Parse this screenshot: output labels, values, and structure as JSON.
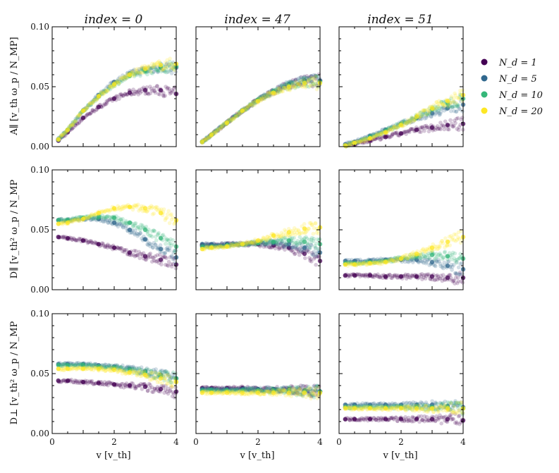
{
  "chart_data": {
    "type": "scatter",
    "column_titles": [
      "index = 0",
      "index = 47",
      "index = 51"
    ],
    "row_ylabels": [
      "A∥ [v_th ω_p / N_MP]",
      "D∥ [v_th² ω_p / N_MP",
      "D⊥ [v_th² ω_p / N_MP"
    ],
    "xlabel": "v [v_th]",
    "xlim": [
      0,
      4
    ],
    "ylim": [
      0,
      0.1
    ],
    "x_ticks": [
      "0",
      "2",
      "4"
    ],
    "y_ticks": [
      "0.00",
      "0.05",
      "0.10"
    ],
    "legend": {
      "placement": "right",
      "entries": [
        {
          "label": "N_d = 1",
          "color": "#440154"
        },
        {
          "label": "N_d = 5",
          "color": "#31688e"
        },
        {
          "label": "N_d = 10",
          "color": "#35b779"
        },
        {
          "label": "N_d = 20",
          "color": "#fde725"
        }
      ]
    },
    "x": [
      0.2,
      0.5,
      1.0,
      1.5,
      2.0,
      2.5,
      3.0,
      3.5,
      4.0
    ],
    "panels": [
      {
        "row": 0,
        "col": 0,
        "series": [
          {
            "name": "N_d = 1",
            "values": [
              0.005,
              0.012,
              0.024,
              0.033,
              0.04,
              0.045,
              0.047,
              0.047,
              0.044
            ]
          },
          {
            "name": "N_d = 5",
            "values": [
              0.006,
              0.014,
              0.03,
              0.043,
              0.054,
              0.061,
              0.064,
              0.066,
              0.066
            ]
          },
          {
            "name": "N_d = 10",
            "values": [
              0.006,
              0.014,
              0.03,
              0.042,
              0.052,
              0.059,
              0.063,
              0.066,
              0.067
            ]
          },
          {
            "name": "N_d = 20",
            "values": [
              0.006,
              0.014,
              0.03,
              0.042,
              0.052,
              0.06,
              0.065,
              0.068,
              0.069
            ]
          }
        ]
      },
      {
        "row": 0,
        "col": 1,
        "series": [
          {
            "name": "N_d = 1",
            "values": [
              0.004,
              0.01,
              0.02,
              0.03,
              0.039,
              0.046,
              0.052,
              0.055,
              0.055
            ]
          },
          {
            "name": "N_d = 5",
            "values": [
              0.004,
              0.01,
              0.02,
              0.03,
              0.039,
              0.046,
              0.052,
              0.055,
              0.055
            ]
          },
          {
            "name": "N_d = 10",
            "values": [
              0.004,
              0.01,
              0.02,
              0.03,
              0.039,
              0.046,
              0.051,
              0.054,
              0.054
            ]
          },
          {
            "name": "N_d = 20",
            "values": [
              0.004,
              0.01,
              0.02,
              0.03,
              0.038,
              0.045,
              0.05,
              0.053,
              0.053
            ]
          }
        ]
      },
      {
        "row": 0,
        "col": 2,
        "series": [
          {
            "name": "N_d = 1",
            "values": [
              0.001,
              0.002,
              0.005,
              0.008,
              0.011,
              0.014,
              0.016,
              0.018,
              0.019
            ]
          },
          {
            "name": "N_d = 5",
            "values": [
              0.002,
              0.004,
              0.009,
              0.014,
              0.019,
              0.024,
              0.028,
              0.032,
              0.035
            ]
          },
          {
            "name": "N_d = 10",
            "values": [
              0.001,
              0.003,
              0.008,
              0.013,
              0.019,
              0.025,
              0.031,
              0.036,
              0.04
            ]
          },
          {
            "name": "N_d = 20",
            "values": [
              0.001,
              0.003,
              0.007,
              0.012,
              0.018,
              0.025,
              0.032,
              0.038,
              0.043
            ]
          }
        ]
      },
      {
        "row": 1,
        "col": 0,
        "series": [
          {
            "name": "N_d = 1",
            "values": [
              0.044,
              0.043,
              0.041,
              0.038,
              0.035,
              0.031,
              0.028,
              0.025,
              0.021
            ]
          },
          {
            "name": "N_d = 5",
            "values": [
              0.058,
              0.058,
              0.059,
              0.059,
              0.056,
              0.05,
              0.042,
              0.034,
              0.027
            ]
          },
          {
            "name": "N_d = 10",
            "values": [
              0.058,
              0.058,
              0.06,
              0.061,
              0.06,
              0.056,
              0.05,
              0.043,
              0.036
            ]
          },
          {
            "name": "N_d = 20",
            "values": [
              0.055,
              0.056,
              0.059,
              0.064,
              0.068,
              0.069,
              0.068,
              0.064,
              0.058
            ]
          }
        ]
      },
      {
        "row": 1,
        "col": 1,
        "series": [
          {
            "name": "N_d = 1",
            "values": [
              0.037,
              0.037,
              0.038,
              0.038,
              0.038,
              0.037,
              0.035,
              0.03,
              0.024
            ]
          },
          {
            "name": "N_d = 5",
            "values": [
              0.038,
              0.038,
              0.038,
              0.038,
              0.039,
              0.039,
              0.038,
              0.035,
              0.031
            ]
          },
          {
            "name": "N_d = 10",
            "values": [
              0.036,
              0.036,
              0.037,
              0.038,
              0.039,
              0.04,
              0.041,
              0.04,
              0.038
            ]
          },
          {
            "name": "N_d = 20",
            "values": [
              0.034,
              0.035,
              0.036,
              0.038,
              0.041,
              0.045,
              0.048,
              0.051,
              0.052
            ]
          }
        ]
      },
      {
        "row": 1,
        "col": 2,
        "series": [
          {
            "name": "N_d = 1",
            "values": [
              0.012,
              0.012,
              0.012,
              0.011,
              0.011,
              0.011,
              0.011,
              0.01,
              0.01
            ]
          },
          {
            "name": "N_d = 5",
            "values": [
              0.024,
              0.024,
              0.024,
              0.025,
              0.025,
              0.025,
              0.023,
              0.02,
              0.017
            ]
          },
          {
            "name": "N_d = 10",
            "values": [
              0.022,
              0.022,
              0.023,
              0.024,
              0.026,
              0.028,
              0.029,
              0.028,
              0.026
            ]
          },
          {
            "name": "N_d = 20",
            "values": [
              0.021,
              0.021,
              0.022,
              0.023,
              0.026,
              0.03,
              0.035,
              0.04,
              0.044
            ]
          }
        ]
      },
      {
        "row": 2,
        "col": 0,
        "series": [
          {
            "name": "N_d = 1",
            "values": [
              0.044,
              0.044,
              0.043,
              0.042,
              0.041,
              0.04,
              0.039,
              0.037,
              0.035
            ]
          },
          {
            "name": "N_d = 5",
            "values": [
              0.058,
              0.058,
              0.058,
              0.057,
              0.056,
              0.054,
              0.052,
              0.049,
              0.046
            ]
          },
          {
            "name": "N_d = 10",
            "values": [
              0.057,
              0.057,
              0.057,
              0.056,
              0.055,
              0.053,
              0.051,
              0.048,
              0.046
            ]
          },
          {
            "name": "N_d = 20",
            "values": [
              0.054,
              0.054,
              0.054,
              0.054,
              0.053,
              0.051,
              0.049,
              0.046,
              0.043
            ]
          }
        ]
      },
      {
        "row": 2,
        "col": 1,
        "series": [
          {
            "name": "N_d = 1",
            "values": [
              0.038,
              0.038,
              0.038,
              0.038,
              0.037,
              0.037,
              0.037,
              0.036,
              0.035
            ]
          },
          {
            "name": "N_d = 5",
            "values": [
              0.037,
              0.037,
              0.037,
              0.037,
              0.037,
              0.037,
              0.036,
              0.036,
              0.035
            ]
          },
          {
            "name": "N_d = 10",
            "values": [
              0.036,
              0.036,
              0.036,
              0.036,
              0.036,
              0.036,
              0.036,
              0.035,
              0.035
            ]
          },
          {
            "name": "N_d = 20",
            "values": [
              0.034,
              0.034,
              0.034,
              0.034,
              0.034,
              0.034,
              0.034,
              0.034,
              0.034
            ]
          }
        ]
      },
      {
        "row": 2,
        "col": 2,
        "series": [
          {
            "name": "N_d = 1",
            "values": [
              0.012,
              0.012,
              0.012,
              0.012,
              0.012,
              0.012,
              0.012,
              0.012,
              0.011
            ]
          },
          {
            "name": "N_d = 5",
            "values": [
              0.024,
              0.024,
              0.024,
              0.024,
              0.024,
              0.024,
              0.024,
              0.023,
              0.022
            ]
          },
          {
            "name": "N_d = 10",
            "values": [
              0.022,
              0.022,
              0.022,
              0.022,
              0.022,
              0.022,
              0.022,
              0.022,
              0.021
            ]
          },
          {
            "name": "N_d = 20",
            "values": [
              0.021,
              0.021,
              0.021,
              0.021,
              0.021,
              0.021,
              0.021,
              0.021,
              0.021
            ]
          }
        ]
      }
    ]
  }
}
